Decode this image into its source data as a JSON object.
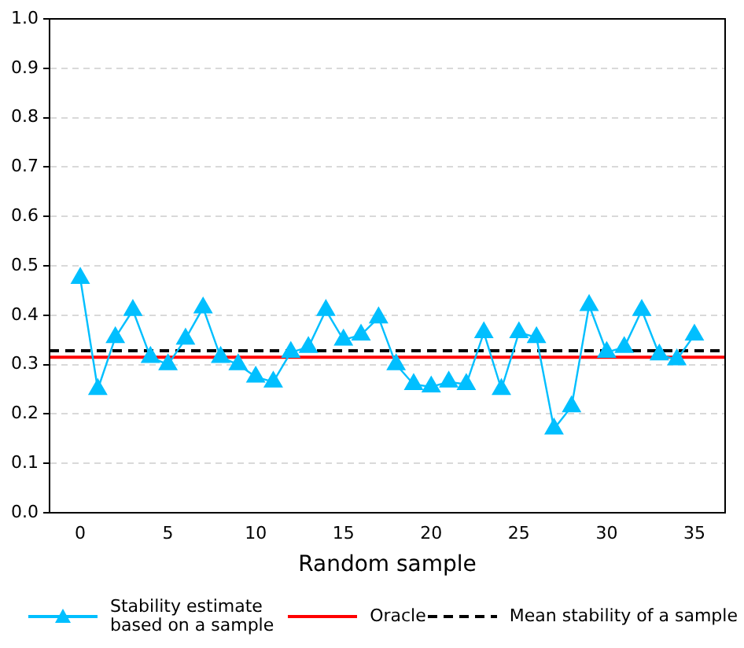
{
  "chart_data": {
    "type": "line",
    "xlabel": "Random sample",
    "x": [
      0,
      1,
      2,
      3,
      4,
      5,
      6,
      7,
      8,
      9,
      10,
      11,
      12,
      13,
      14,
      15,
      16,
      17,
      18,
      19,
      20,
      21,
      22,
      23,
      24,
      25,
      26,
      27,
      28,
      29,
      30,
      31,
      32,
      33,
      34,
      35
    ],
    "series": [
      {
        "name": "Stability estimate based on a sample",
        "color": "#00bfff",
        "marker": "triangle",
        "line_style": "solid",
        "values": [
          0.475,
          0.25,
          0.355,
          0.41,
          0.315,
          0.3,
          0.352,
          0.415,
          0.315,
          0.3,
          0.275,
          0.265,
          0.325,
          0.335,
          0.41,
          0.35,
          0.36,
          0.395,
          0.3,
          0.26,
          0.255,
          0.265,
          0.26,
          0.365,
          0.25,
          0.365,
          0.355,
          0.17,
          0.215,
          0.42,
          0.325,
          0.335,
          0.41,
          0.32,
          0.31,
          0.36
        ]
      }
    ],
    "ref_lines": [
      {
        "axis": "y",
        "value": 0.315,
        "label": "Oracle",
        "color": "#ff0000",
        "line_style": "solid"
      },
      {
        "axis": "y",
        "value": 0.328,
        "label": "Mean stability of a sample",
        "color": "#000000",
        "line_style": "dashed"
      }
    ],
    "xlim": [
      -1.75,
      36.75
    ],
    "xticks": [
      0,
      5,
      10,
      15,
      20,
      25,
      30,
      35
    ],
    "ylim": [
      0,
      1
    ],
    "yticks": [
      {
        "value": 0,
        "label": "0.0"
      },
      {
        "value": 0.1,
        "label": "0.1"
      },
      {
        "value": 0.2,
        "label": "0.2"
      },
      {
        "value": 0.3,
        "label": "0.3"
      },
      {
        "value": 0.4,
        "label": "0.4"
      },
      {
        "value": 0.5,
        "label": "0.5"
      },
      {
        "value": 0.6,
        "label": "0.6"
      },
      {
        "value": 0.7,
        "label": "0.7"
      },
      {
        "value": 0.8,
        "label": "0.8"
      },
      {
        "value": 0.9,
        "label": "0.9"
      },
      {
        "value": 1,
        "label": "1.0"
      }
    ],
    "grid": "y",
    "legend": "bottom"
  }
}
